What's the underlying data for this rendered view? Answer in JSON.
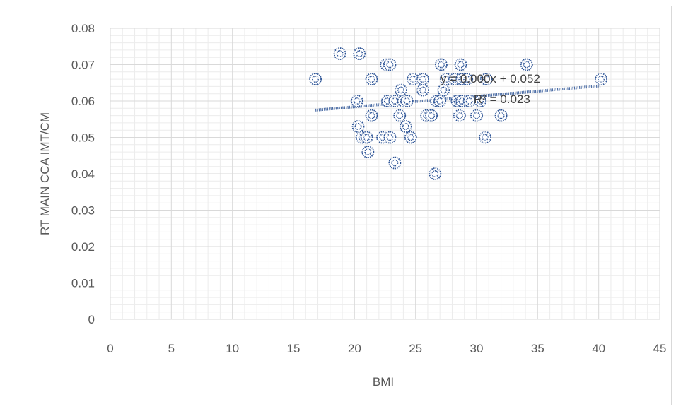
{
  "chart_data": {
    "type": "scatter",
    "xlabel": "BMI",
    "ylabel": "RT MAIN  CCA IMT/CM",
    "xlim": [
      0,
      45
    ],
    "ylim": [
      0,
      0.08
    ],
    "x_ticks": [
      "0",
      "5",
      "10",
      "15",
      "20",
      "25",
      "30",
      "35",
      "40",
      "45"
    ],
    "y_ticks": [
      "0",
      "0.01",
      "0.02",
      "0.03",
      "0.04",
      "0.05",
      "0.06",
      "0.07",
      "0.08"
    ],
    "grid": true,
    "marker_color": "#2e5597",
    "trendline": {
      "type": "linear",
      "x_range": [
        16.8,
        40.2
      ],
      "y_range": [
        0.0575,
        0.0642
      ],
      "equation": "y = 0.000x + 0.052",
      "r_squared": "R² = 0.023"
    },
    "points": [
      {
        "x": 16.8,
        "y": 0.066
      },
      {
        "x": 18.8,
        "y": 0.073
      },
      {
        "x": 20.4,
        "y": 0.073
      },
      {
        "x": 20.2,
        "y": 0.06
      },
      {
        "x": 20.3,
        "y": 0.053
      },
      {
        "x": 20.6,
        "y": 0.05
      },
      {
        "x": 21.0,
        "y": 0.05
      },
      {
        "x": 21.1,
        "y": 0.046
      },
      {
        "x": 21.4,
        "y": 0.056
      },
      {
        "x": 21.4,
        "y": 0.066
      },
      {
        "x": 22.3,
        "y": 0.05
      },
      {
        "x": 22.6,
        "y": 0.07
      },
      {
        "x": 22.7,
        "y": 0.06
      },
      {
        "x": 22.9,
        "y": 0.05
      },
      {
        "x": 22.9,
        "y": 0.07
      },
      {
        "x": 23.3,
        "y": 0.043
      },
      {
        "x": 23.3,
        "y": 0.06
      },
      {
        "x": 23.7,
        "y": 0.056
      },
      {
        "x": 23.8,
        "y": 0.063
      },
      {
        "x": 24.0,
        "y": 0.06
      },
      {
        "x": 24.2,
        "y": 0.053
      },
      {
        "x": 24.3,
        "y": 0.06
      },
      {
        "x": 24.6,
        "y": 0.05
      },
      {
        "x": 24.8,
        "y": 0.066
      },
      {
        "x": 25.6,
        "y": 0.063
      },
      {
        "x": 25.6,
        "y": 0.066
      },
      {
        "x": 25.9,
        "y": 0.056
      },
      {
        "x": 26.3,
        "y": 0.056
      },
      {
        "x": 26.6,
        "y": 0.04
      },
      {
        "x": 26.7,
        "y": 0.06
      },
      {
        "x": 27.0,
        "y": 0.06
      },
      {
        "x": 27.1,
        "y": 0.07
      },
      {
        "x": 27.3,
        "y": 0.063
      },
      {
        "x": 27.5,
        "y": 0.066
      },
      {
        "x": 28.2,
        "y": 0.066
      },
      {
        "x": 28.4,
        "y": 0.06
      },
      {
        "x": 28.6,
        "y": 0.056
      },
      {
        "x": 28.7,
        "y": 0.07
      },
      {
        "x": 28.8,
        "y": 0.066
      },
      {
        "x": 28.8,
        "y": 0.06
      },
      {
        "x": 29.2,
        "y": 0.066
      },
      {
        "x": 29.4,
        "y": 0.06
      },
      {
        "x": 30.0,
        "y": 0.056
      },
      {
        "x": 30.3,
        "y": 0.06
      },
      {
        "x": 30.7,
        "y": 0.05
      },
      {
        "x": 30.8,
        "y": 0.066
      },
      {
        "x": 32.0,
        "y": 0.056
      },
      {
        "x": 34.1,
        "y": 0.07
      },
      {
        "x": 40.2,
        "y": 0.066
      }
    ]
  }
}
